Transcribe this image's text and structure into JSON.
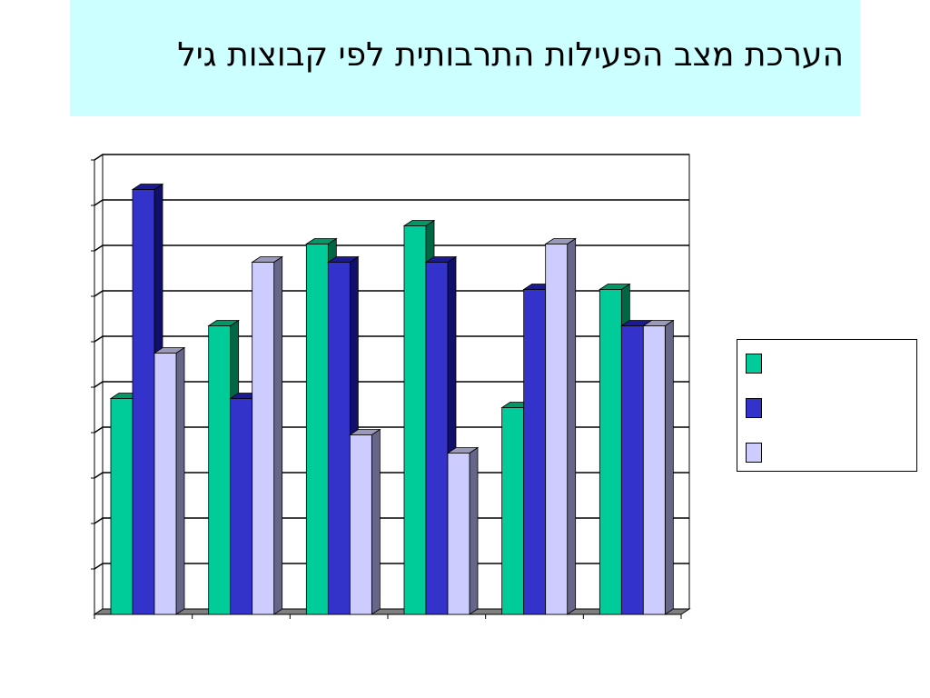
{
  "slide": {
    "title": "הערכת מצב הפעילות התרבותית לפי קבוצות גיל"
  },
  "colors": {
    "title_background": "#ccffff",
    "series": [
      {
        "front": "#00cc99",
        "top": "#009966",
        "side": "#006644"
      },
      {
        "front": "#3333cc",
        "top": "#1a1a99",
        "side": "#10106b"
      },
      {
        "front": "#ccccff",
        "top": "#9999bb",
        "side": "#666688"
      }
    ]
  },
  "chart_data": {
    "type": "bar",
    "style": "3d-clustered-column",
    "categories": [
      "",
      "",
      "",
      "",
      "",
      ""
    ],
    "series": [
      {
        "values": [
          47.5,
          63.5,
          81.5,
          85.5,
          45.5,
          71.5
        ]
      },
      {
        "values": [
          93.5,
          47.5,
          77.5,
          77.5,
          71.5,
          63.5
        ]
      },
      {
        "values": [
          57.5,
          77.5,
          39.5,
          35.5,
          81.5,
          63.5
        ]
      }
    ],
    "ylim": [
      0,
      100
    ],
    "gridlines": true,
    "legend_position": "right",
    "legend": [
      "",
      "",
      ""
    ],
    "title": "",
    "xlabel": "",
    "ylabel": ""
  }
}
